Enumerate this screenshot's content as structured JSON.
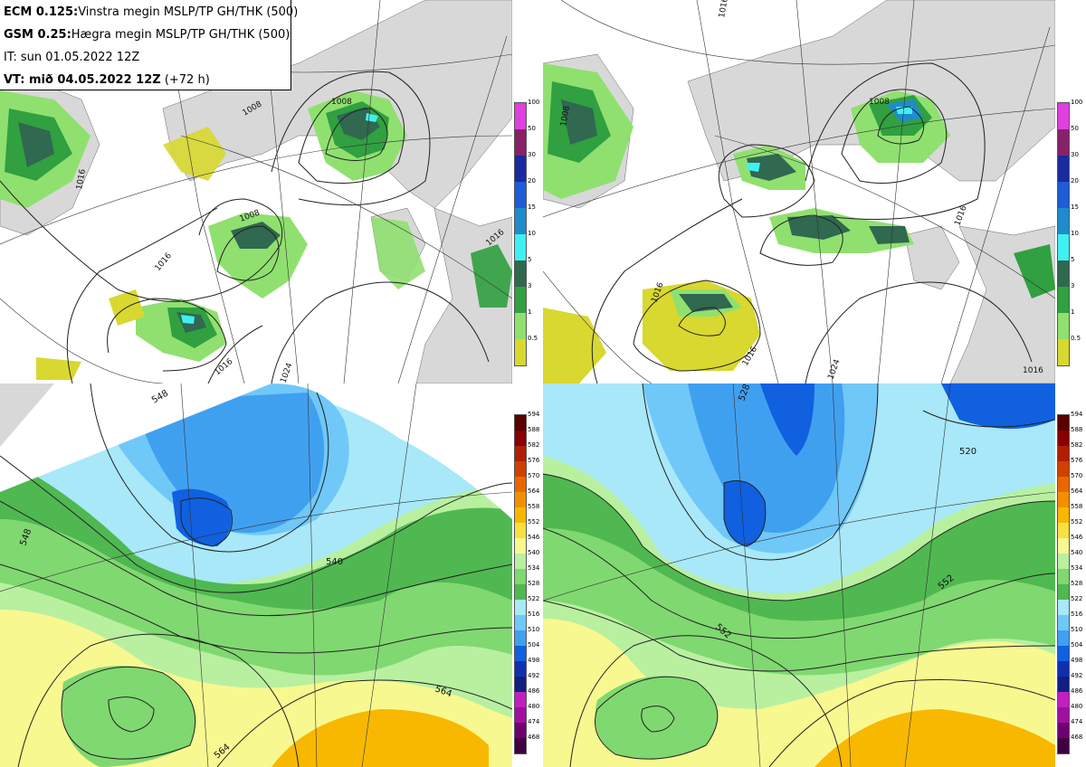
{
  "info": {
    "ecm_prefix": "ECM 0.125:",
    "ecm_text": "Vinstra megin MSLP/TP GH/THK (500)",
    "gsm_prefix": "GSM 0.25:",
    "gsm_text": "Hægra megin MSLP/TP GH/THK (500)",
    "it_text": "IT: sun 01.05.2022 12Z",
    "vt_text": "VT: mið 04.05.2022 12Z",
    "vt_step": " (+72 h)"
  },
  "precip_scale": {
    "levels": [
      "100",
      "50",
      "30",
      "20",
      "15",
      "10",
      "5",
      "3",
      "1",
      "0.5"
    ],
    "colors": [
      "#e040e0",
      "#882266",
      "#1a2aa0",
      "#1e5cd8",
      "#1e8ccc",
      "#40f0f0",
      "#306850",
      "#30a040",
      "#90e070",
      "#d8d830"
    ]
  },
  "thickness_scale": {
    "levels": [
      "594",
      "588",
      "582",
      "576",
      "570",
      "564",
      "558",
      "552",
      "546",
      "540",
      "534",
      "528",
      "522",
      "516",
      "510",
      "504",
      "498",
      "492",
      "486",
      "480",
      "474",
      "468"
    ],
    "colors": [
      "#5a0000",
      "#880000",
      "#b02000",
      "#d04000",
      "#e86800",
      "#f09000",
      "#f8b800",
      "#f8e040",
      "#f8f890",
      "#b8f0a0",
      "#80d870",
      "#50b850",
      "#a8e8f8",
      "#70c8f8",
      "#40a0f0",
      "#1060e0",
      "#1030b0",
      "#102080",
      "#c020c0",
      "#a010a0",
      "#700070",
      "#400040"
    ]
  },
  "contour_labels": {
    "tl": [
      "1016",
      "1008",
      "1016",
      "1008",
      "1016",
      "1024",
      "1008",
      "1016"
    ],
    "tr": [
      "1008",
      "1016",
      "1008",
      "1016",
      "1016",
      "1024",
      "1016",
      "1016"
    ],
    "bl": [
      "548",
      "540",
      "564",
      "564",
      "548"
    ],
    "br": [
      "528",
      "520",
      "552",
      "552"
    ]
  },
  "colors": {
    "land": "#d8d8d8",
    "sea": "#ffffff",
    "light_green": "#90e070",
    "green": "#30a040",
    "dark_green": "#306850",
    "yellow": "#d8d830",
    "cyan": "#40f0f0"
  }
}
